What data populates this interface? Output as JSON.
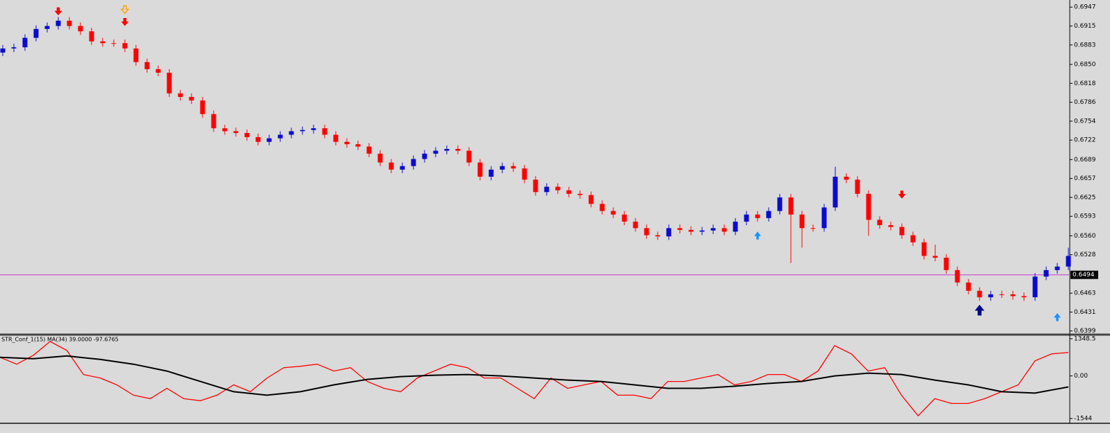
{
  "chart_data": [
    {
      "type": "candlestick",
      "up_color": "#0a0ad0",
      "down_color": "#ff0000",
      "open": [
        0.687,
        0.6877,
        0.6879,
        0.6895,
        0.691,
        0.6915,
        0.6924,
        0.6915,
        0.6906,
        0.6889,
        0.6886,
        0.6886,
        0.6877,
        0.6854,
        0.6842,
        0.6836,
        0.6801,
        0.6795,
        0.6789,
        0.6766,
        0.6742,
        0.6737,
        0.6734,
        0.6727,
        0.6719,
        0.6725,
        0.6731,
        0.6737,
        0.6739,
        0.6742,
        0.6731,
        0.6719,
        0.6715,
        0.6711,
        0.6699,
        0.6684,
        0.6672,
        0.6678,
        0.669,
        0.6699,
        0.6704,
        0.6707,
        0.6704,
        0.6684,
        0.666,
        0.6672,
        0.6678,
        0.6674,
        0.6655,
        0.6634,
        0.6643,
        0.6637,
        0.6631,
        0.6629,
        0.6614,
        0.6602,
        0.6596,
        0.6584,
        0.6573,
        0.6561,
        0.6559,
        0.6573,
        0.657,
        0.6567,
        0.6569,
        0.6573,
        0.6567,
        0.6584,
        0.6596,
        0.659,
        0.6602,
        0.6625,
        0.6596,
        0.6573,
        0.6573,
        0.6608,
        0.666,
        0.6655,
        0.6631,
        0.6587,
        0.6578,
        0.6575,
        0.6561,
        0.6549,
        0.6526,
        0.6523,
        0.6502,
        0.6481,
        0.6467,
        0.6456,
        0.6461,
        0.6461,
        0.6458,
        0.6456,
        0.6491,
        0.6502,
        0.6508
      ],
      "high": [
        0.6883,
        0.6885,
        0.6901,
        0.6916,
        0.6921,
        0.693,
        0.693,
        0.6921,
        0.6912,
        0.6895,
        0.6892,
        0.6892,
        0.6883,
        0.686,
        0.6848,
        0.6842,
        0.6807,
        0.6801,
        0.6795,
        0.6772,
        0.6748,
        0.6743,
        0.674,
        0.6733,
        0.6731,
        0.6737,
        0.6743,
        0.6745,
        0.6748,
        0.6748,
        0.6737,
        0.6725,
        0.6721,
        0.6717,
        0.6705,
        0.669,
        0.6684,
        0.6696,
        0.6705,
        0.671,
        0.6713,
        0.6713,
        0.671,
        0.669,
        0.6678,
        0.6684,
        0.6684,
        0.668,
        0.6661,
        0.6649,
        0.6649,
        0.6643,
        0.6637,
        0.6635,
        0.662,
        0.6608,
        0.6602,
        0.659,
        0.6579,
        0.6567,
        0.6579,
        0.6579,
        0.6576,
        0.6575,
        0.6579,
        0.6579,
        0.659,
        0.6602,
        0.6602,
        0.6608,
        0.6631,
        0.6631,
        0.6602,
        0.6579,
        0.6614,
        0.6677,
        0.6666,
        0.6661,
        0.6637,
        0.6593,
        0.6584,
        0.6581,
        0.6567,
        0.6555,
        0.6545,
        0.6529,
        0.6508,
        0.6487,
        0.6473,
        0.6467,
        0.6467,
        0.6467,
        0.6464,
        0.6497,
        0.6508,
        0.6514,
        0.654
      ],
      "low": [
        0.6864,
        0.6871,
        0.6873,
        0.6889,
        0.6904,
        0.6909,
        0.6909,
        0.69,
        0.6883,
        0.688,
        0.688,
        0.6871,
        0.6848,
        0.6836,
        0.683,
        0.6795,
        0.6789,
        0.6783,
        0.676,
        0.6736,
        0.6731,
        0.6728,
        0.6721,
        0.6713,
        0.6713,
        0.6719,
        0.6725,
        0.6731,
        0.6733,
        0.6725,
        0.6713,
        0.6709,
        0.6705,
        0.6693,
        0.6678,
        0.6666,
        0.6666,
        0.6672,
        0.6684,
        0.6693,
        0.6698,
        0.6698,
        0.6678,
        0.6654,
        0.6654,
        0.6666,
        0.6668,
        0.6649,
        0.6628,
        0.6628,
        0.6631,
        0.6625,
        0.6623,
        0.6608,
        0.6596,
        0.659,
        0.6578,
        0.6567,
        0.6555,
        0.6553,
        0.6553,
        0.6564,
        0.6561,
        0.6561,
        0.6563,
        0.6561,
        0.6561,
        0.6578,
        0.6584,
        0.6584,
        0.6596,
        0.6514,
        0.654,
        0.6567,
        0.6567,
        0.6602,
        0.6649,
        0.6625,
        0.656,
        0.6572,
        0.6569,
        0.6555,
        0.6543,
        0.652,
        0.6517,
        0.6496,
        0.6475,
        0.6461,
        0.645,
        0.645,
        0.6455,
        0.6452,
        0.645,
        0.645,
        0.6485,
        0.6496,
        0.6502
      ],
      "close": [
        0.6877,
        0.6879,
        0.6895,
        0.691,
        0.6915,
        0.6924,
        0.6915,
        0.6906,
        0.6889,
        0.6886,
        0.6886,
        0.6877,
        0.6854,
        0.6842,
        0.6836,
        0.6801,
        0.6795,
        0.6789,
        0.6766,
        0.6742,
        0.6737,
        0.6734,
        0.6727,
        0.6719,
        0.6725,
        0.6731,
        0.6737,
        0.6739,
        0.6742,
        0.6731,
        0.6719,
        0.6715,
        0.6711,
        0.6699,
        0.6684,
        0.6672,
        0.6678,
        0.669,
        0.6699,
        0.6704,
        0.6707,
        0.6704,
        0.6684,
        0.666,
        0.6672,
        0.6678,
        0.6674,
        0.6655,
        0.6634,
        0.6643,
        0.6637,
        0.6631,
        0.6629,
        0.6614,
        0.6602,
        0.6596,
        0.6584,
        0.6573,
        0.6561,
        0.6559,
        0.6573,
        0.657,
        0.6567,
        0.6569,
        0.6573,
        0.6567,
        0.6584,
        0.6596,
        0.659,
        0.6602,
        0.6625,
        0.6596,
        0.6573,
        0.6573,
        0.6608,
        0.666,
        0.6655,
        0.6631,
        0.6587,
        0.6578,
        0.6575,
        0.6561,
        0.6549,
        0.6526,
        0.6523,
        0.6502,
        0.6481,
        0.6467,
        0.6456,
        0.6461,
        0.6461,
        0.6458,
        0.6456,
        0.6491,
        0.6502,
        0.6508,
        0.6526
      ],
      "ylim": [
        0.6394,
        0.6959
      ],
      "yticks": [
        0.6947,
        0.6915,
        0.6883,
        {
          "value": 0.685,
          "label": "0.6850"
        },
        0.6818,
        0.6786,
        0.6754,
        0.6722,
        0.6689,
        0.6657,
        0.6625,
        0.6593,
        {
          "value": 0.656,
          "label": "0.6560"
        },
        0.6528,
        0.6463,
        0.6431,
        0.6399
      ],
      "price_line": {
        "value": 0.6494,
        "color": "#cc33cc"
      },
      "signals": [
        {
          "index": 5,
          "price": 0.6938,
          "kind": "down",
          "color": "#ff0000"
        },
        {
          "index": 11,
          "price": 0.6941,
          "kind": "down-hollow",
          "color": "#ffa500"
        },
        {
          "index": 11,
          "price": 0.692,
          "kind": "down",
          "color": "#ff0000"
        },
        {
          "index": 68,
          "price": 0.6561,
          "kind": "up",
          "color": "#1e90ff"
        },
        {
          "index": 81,
          "price": 0.6628,
          "kind": "down",
          "color": "#ff0000"
        },
        {
          "index": 88,
          "price": 0.6436,
          "kind": "up-big",
          "color": "#00008b"
        },
        {
          "index": 95,
          "price": 0.6423,
          "kind": "up",
          "color": "#1e90ff"
        }
      ]
    },
    {
      "type": "line",
      "title": "STR_Conf_1(15) MA(34) 39.0000 -97.6765",
      "series": [
        {
          "color": "#ff0000",
          "values": [
            674,
            424,
            749,
            1249,
            924,
            50,
            -75,
            -325,
            -699,
            -824,
            -449,
            -824,
            -899,
            -699,
            -325,
            -574,
            -75,
            300,
            350,
            424,
            175,
            300,
            -200,
            -449,
            -574,
            -75,
            175,
            424,
            300,
            -75,
            -75,
            -449,
            -824,
            -75,
            -449,
            -325,
            -200,
            -699,
            -699,
            -824,
            -200,
            -200,
            -75,
            50,
            -325,
            -200,
            50,
            50,
            -200,
            175,
            1099,
            799,
            175,
            300,
            -699,
            -1448,
            -824,
            -999,
            -999,
            -824,
            -574,
            -325,
            549,
            799,
            849
          ]
        },
        {
          "color": "#000000",
          "values": [
            674,
            624,
            724,
            599,
            424,
            175,
            -200,
            -574,
            -699,
            -574,
            -325,
            -125,
            -25,
            25,
            50,
            0,
            -75,
            -150,
            -200,
            -325,
            -449,
            -449,
            -375,
            -275,
            -200,
            0,
            100,
            50,
            -150,
            -325,
            -574,
            -624,
            -400
          ]
        }
      ],
      "ylim": [
        -1694,
        1448
      ],
      "yticks": [
        1348.5,
        {
          "value": 0,
          "label": "0.00"
        },
        -1544
      ]
    }
  ]
}
